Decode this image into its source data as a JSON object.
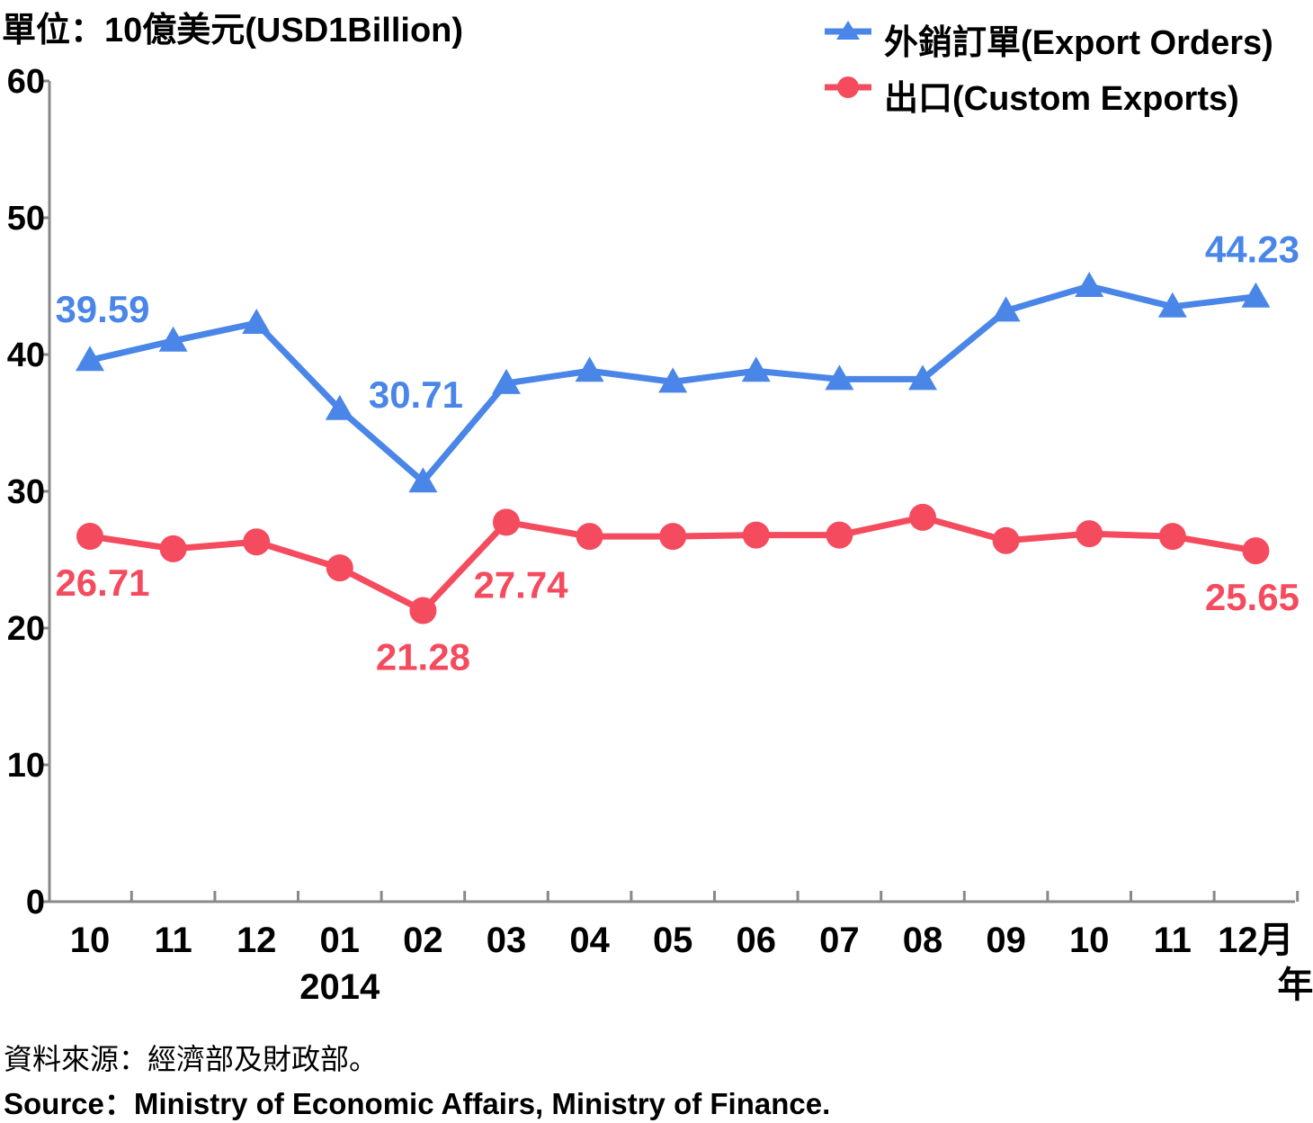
{
  "unit_label": "單位：10億美元(USD1Billion)",
  "source_zh": "資料來源：經濟部及財政部。",
  "source_en": "Source：Ministry of Economic Affairs, Ministry of Finance.",
  "month_suffix": "月",
  "year_suffix": "年",
  "colors": {
    "export_orders": "#4a86e8",
    "custom_exports": "#f44b5e",
    "axis": "#888888"
  },
  "chart_data": {
    "type": "line",
    "categories": [
      "10",
      "11",
      "12",
      "01",
      "02",
      "03",
      "04",
      "05",
      "06",
      "07",
      "08",
      "09",
      "10",
      "11",
      "12"
    ],
    "year_label": {
      "text": "2014",
      "under_category_index": 3
    },
    "ylim": [
      0,
      60
    ],
    "yticks": [
      "0",
      "10",
      "20",
      "30",
      "40",
      "50",
      "60"
    ],
    "grid": false,
    "legend": "top-right",
    "series": [
      {
        "name": "外銷訂單(Export Orders)",
        "marker": "triangle",
        "values": [
          39.59,
          41.0,
          42.3,
          36.0,
          30.71,
          37.9,
          38.8,
          38.0,
          38.8,
          38.2,
          38.2,
          43.2,
          45.0,
          43.5,
          44.23
        ],
        "labels": [
          {
            "index": 0,
            "text": "39.59"
          },
          {
            "index": 4,
            "text": "30.71"
          },
          {
            "index": 14,
            "text": "44.23"
          }
        ]
      },
      {
        "name": "出口(Custom Exports)",
        "marker": "circle",
        "values": [
          26.71,
          25.8,
          26.3,
          24.4,
          21.28,
          27.74,
          26.7,
          26.7,
          26.8,
          26.8,
          28.1,
          26.4,
          26.9,
          26.7,
          25.65
        ],
        "labels": [
          {
            "index": 0,
            "text": "26.71"
          },
          {
            "index": 4,
            "text": "21.28"
          },
          {
            "index": 5,
            "text": "27.74"
          },
          {
            "index": 14,
            "text": "25.65"
          }
        ]
      }
    ]
  }
}
